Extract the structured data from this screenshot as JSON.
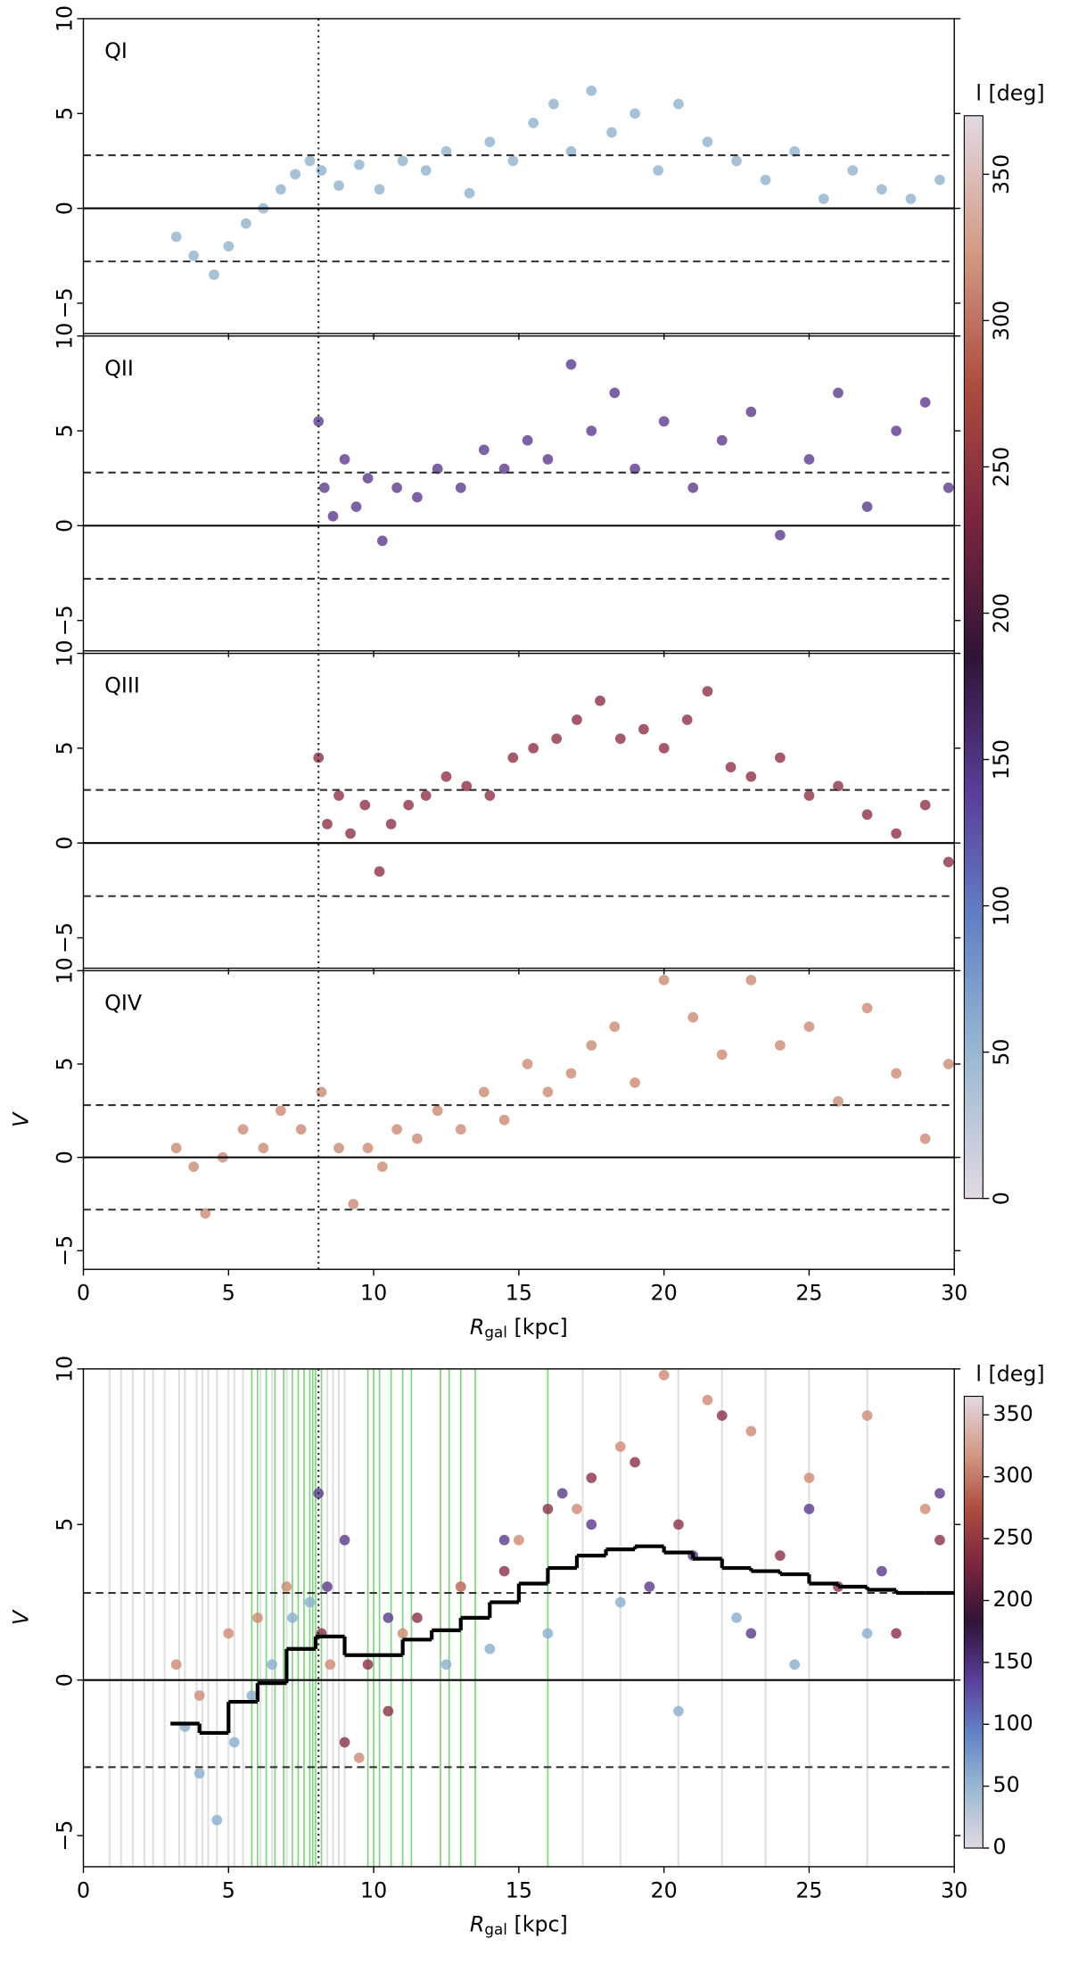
{
  "chart_data": [
    {
      "type": "scatter",
      "panel_label": "QI",
      "xlim": [
        0,
        30
      ],
      "ylim": [
        -6.6,
        10
      ],
      "xticks": [
        0,
        5,
        10,
        15,
        20,
        25,
        30
      ],
      "show_xticklabels": false,
      "yticks": [
        10,
        5,
        0,
        {
          "value": -5,
          "label": "−5"
        }
      ],
      "hline": 0,
      "dashed_hlines": [
        2.8,
        -2.8
      ],
      "vline": 8.1,
      "series": [
        {
          "color": "#8fb3cf",
          "x": [
            3.2,
            3.8,
            4.5,
            5.0,
            5.6,
            6.2,
            6.8,
            7.3,
            7.8,
            8.2,
            8.8,
            9.5,
            10.2,
            11.0,
            11.8,
            12.5,
            13.3,
            14.0,
            14.8,
            15.5,
            16.2,
            16.8,
            17.5,
            18.2,
            19.0,
            19.8,
            20.5,
            21.5,
            22.5,
            23.5,
            24.5,
            25.5,
            26.5,
            27.5,
            28.5,
            29.5
          ],
          "y": [
            -1.5,
            -2.5,
            -3.5,
            -2.0,
            -0.8,
            0.0,
            1.0,
            1.8,
            2.5,
            2.0,
            1.2,
            2.3,
            1.0,
            2.5,
            2.0,
            3.0,
            0.8,
            3.5,
            2.5,
            4.5,
            5.5,
            3.0,
            6.2,
            4.0,
            5.0,
            2.0,
            5.5,
            3.5,
            2.5,
            1.5,
            3.0,
            0.5,
            2.0,
            1.0,
            0.5,
            1.5
          ]
        }
      ]
    },
    {
      "type": "scatter",
      "panel_label": "QII",
      "xlim": [
        0,
        30
      ],
      "ylim": [
        -6.6,
        10
      ],
      "xticks": [
        0,
        5,
        10,
        15,
        20,
        25,
        30
      ],
      "show_xticklabels": false,
      "yticks": [
        10,
        5,
        0,
        {
          "value": -5,
          "label": "−5"
        }
      ],
      "hline": 0,
      "dashed_hlines": [
        2.8,
        -2.8
      ],
      "vline": 8.1,
      "series": [
        {
          "color": "#5c3a8f",
          "x": [
            8.1,
            8.3,
            8.6,
            9.0,
            9.4,
            9.8,
            10.3,
            10.8,
            11.5,
            12.2,
            13.0,
            13.8,
            14.5,
            15.3,
            16.0,
            16.8,
            17.5,
            18.3,
            19.0,
            20.0,
            21.0,
            22.0,
            23.0,
            24.0,
            25.0,
            26.0,
            27.0,
            28.0,
            29.0,
            29.8
          ],
          "y": [
            5.5,
            2.0,
            0.5,
            3.5,
            1.0,
            2.5,
            -0.8,
            2.0,
            1.5,
            3.0,
            2.0,
            4.0,
            3.0,
            4.5,
            3.5,
            8.5,
            5.0,
            7.0,
            3.0,
            5.5,
            2.0,
            4.5,
            6.0,
            -0.5,
            3.5,
            7.0,
            1.0,
            5.0,
            6.5,
            2.0
          ]
        }
      ]
    },
    {
      "type": "scatter",
      "panel_label": "QIII",
      "xlim": [
        0,
        30
      ],
      "ylim": [
        -6.6,
        10
      ],
      "xticks": [
        0,
        5,
        10,
        15,
        20,
        25,
        30
      ],
      "show_xticklabels": false,
      "yticks": [
        10,
        5,
        0,
        {
          "value": -5,
          "label": "−5"
        }
      ],
      "hline": 0,
      "dashed_hlines": [
        2.8,
        -2.8
      ],
      "vline": 8.1,
      "series": [
        {
          "color": "#8e3045",
          "x": [
            8.1,
            8.4,
            8.8,
            9.2,
            9.7,
            10.2,
            10.6,
            11.2,
            11.8,
            12.5,
            13.2,
            14.0,
            14.8,
            15.5,
            16.3,
            17.0,
            17.8,
            18.5,
            19.3,
            20.0,
            20.8,
            21.5,
            22.3,
            23.0,
            24.0,
            25.0,
            26.0,
            27.0,
            28.0,
            29.0,
            29.8
          ],
          "y": [
            4.5,
            1.0,
            2.5,
            0.5,
            2.0,
            -1.5,
            1.0,
            2.0,
            2.5,
            3.5,
            3.0,
            2.5,
            4.5,
            5.0,
            5.5,
            6.5,
            7.5,
            5.5,
            6.0,
            5.0,
            6.5,
            8.0,
            4.0,
            3.5,
            4.5,
            2.5,
            3.0,
            1.5,
            0.5,
            2.0,
            -1.0
          ]
        }
      ]
    },
    {
      "type": "scatter",
      "panel_label": "QIV",
      "ylabel": "V",
      "xlabel": {
        "main": "R",
        "sub": "gal",
        "unit": " [kpc]"
      },
      "xlim": [
        0,
        30
      ],
      "ylim": [
        -6,
        10
      ],
      "xticks": [
        0,
        5,
        10,
        15,
        20,
        25,
        30
      ],
      "show_xticklabels": true,
      "yticks": [
        10,
        5,
        0,
        {
          "value": -5,
          "label": "−5"
        }
      ],
      "hline": 0,
      "dashed_hlines": [
        2.8,
        -2.8
      ],
      "vline": 8.1,
      "series": [
        {
          "color": "#cc8a72",
          "x": [
            3.2,
            3.8,
            4.2,
            4.8,
            5.5,
            6.2,
            6.8,
            7.5,
            8.2,
            8.8,
            9.3,
            9.8,
            10.3,
            10.8,
            11.5,
            12.2,
            13.0,
            13.8,
            14.5,
            15.3,
            16.0,
            16.8,
            17.5,
            18.3,
            19.0,
            20.0,
            21.0,
            22.0,
            23.0,
            24.0,
            25.0,
            26.0,
            27.0,
            28.0,
            29.0,
            29.8
          ],
          "y": [
            0.5,
            -0.5,
            -3.0,
            0.0,
            1.5,
            0.5,
            2.5,
            1.5,
            3.5,
            0.5,
            -2.5,
            0.5,
            -0.5,
            1.5,
            1.0,
            2.5,
            1.5,
            3.5,
            2.0,
            5.0,
            3.5,
            4.5,
            6.0,
            7.0,
            4.0,
            9.5,
            7.5,
            5.5,
            9.5,
            6.0,
            7.0,
            3.0,
            8.0,
            4.5,
            1.0,
            5.0
          ]
        }
      ]
    },
    {
      "type": "scatter",
      "ylabel": "V",
      "xlabel": {
        "main": "R",
        "sub": "gal",
        "unit": " [kpc]"
      },
      "xlim": [
        0,
        30
      ],
      "ylim": [
        -6,
        10
      ],
      "xticks": [
        0,
        5,
        10,
        15,
        20,
        25,
        30
      ],
      "show_xticklabels": true,
      "yticks": [
        10,
        5,
        0,
        {
          "value": -5,
          "label": "−5"
        }
      ],
      "hline": 0,
      "dashed_hlines": [
        2.8,
        -2.8
      ],
      "vline": 8.1,
      "gray_lines": [
        0.9,
        1.3,
        1.7,
        2.1,
        2.4,
        2.8,
        3.3,
        3.5,
        3.9,
        4.1,
        4.3,
        4.6,
        5.0,
        5.2,
        5.5,
        6.1,
        6.5,
        7.0,
        8.4,
        8.6,
        8.8,
        9.0,
        17.2,
        18.5,
        20.5,
        22.0,
        23.5,
        25.0,
        27.0
      ],
      "green_lines": [
        5.8,
        6.0,
        6.3,
        6.6,
        6.9,
        7.2,
        7.4,
        7.6,
        7.8,
        7.9,
        8.0,
        8.2,
        9.8,
        10.0,
        10.2,
        10.6,
        11.0,
        11.3,
        12.3,
        12.6,
        13.0,
        13.5,
        16.0
      ],
      "series": [
        {
          "color": "#8aaed0",
          "x": [
            3.5,
            4.0,
            4.6,
            5.2,
            5.8,
            6.5,
            7.2,
            7.8,
            12.5,
            14.0,
            16.0,
            18.5,
            20.5,
            22.5,
            24.5,
            27.0
          ],
          "y": [
            -1.5,
            -3.0,
            -4.5,
            -2.0,
            -0.5,
            0.5,
            2.0,
            2.5,
            0.5,
            1.0,
            1.5,
            2.5,
            -1.0,
            2.0,
            0.5,
            1.5
          ]
        },
        {
          "color": "#5a3a8c",
          "x": [
            8.1,
            8.4,
            9.0,
            10.5,
            14.5,
            16.5,
            17.5,
            19.5,
            21.0,
            23.0,
            25.0,
            27.5,
            29.5
          ],
          "y": [
            6.0,
            3.0,
            4.5,
            2.0,
            4.5,
            6.0,
            5.0,
            3.0,
            4.0,
            1.5,
            5.5,
            3.5,
            6.0
          ]
        },
        {
          "color": "#8c2f47",
          "x": [
            8.2,
            9.0,
            9.8,
            10.5,
            11.5,
            13.0,
            14.5,
            16.0,
            17.5,
            19.0,
            20.5,
            22.0,
            24.0,
            26.0,
            28.0,
            29.5
          ],
          "y": [
            1.5,
            -2.0,
            0.5,
            -1.0,
            2.0,
            3.0,
            3.5,
            5.5,
            6.5,
            7.0,
            5.0,
            8.5,
            4.0,
            3.0,
            1.5,
            4.5
          ]
        },
        {
          "color": "#d08a70",
          "x": [
            3.2,
            4.0,
            5.0,
            6.0,
            7.0,
            8.5,
            9.5,
            11.0,
            13.0,
            15.0,
            17.0,
            18.5,
            20.0,
            21.5,
            23.0,
            25.0,
            27.0,
            29.0
          ],
          "y": [
            0.5,
            -0.5,
            1.5,
            2.0,
            3.0,
            0.5,
            -2.5,
            1.5,
            3.0,
            4.5,
            5.5,
            7.5,
            9.8,
            9.0,
            8.0,
            6.5,
            8.5,
            5.5
          ]
        }
      ],
      "step": {
        "color": "#000000",
        "bins": [
          3,
          4,
          5,
          6,
          7,
          8,
          9,
          10,
          11,
          12,
          13,
          14,
          15,
          16,
          17,
          18,
          19,
          20,
          21,
          22,
          23,
          24,
          25,
          26,
          27,
          28,
          29,
          30
        ],
        "values": [
          -1.4,
          -1.7,
          -0.7,
          -0.1,
          1.0,
          1.4,
          0.8,
          0.8,
          1.3,
          1.6,
          2.0,
          2.5,
          3.1,
          3.6,
          4.0,
          4.2,
          4.3,
          4.1,
          3.9,
          3.6,
          3.5,
          3.4,
          3.1,
          3.0,
          2.9,
          2.8,
          2.8
        ]
      }
    }
  ],
  "colorbars": [
    {
      "label": "l [deg]",
      "clim": [
        0,
        370
      ],
      "ticks": [
        0,
        50,
        100,
        150,
        200,
        250,
        300,
        350
      ],
      "tick_rotation": 90,
      "colormap": [
        "#e2d9e2",
        "#9ebbd2",
        "#6385c7",
        "#5a3e9a",
        "#2f1436",
        "#7a2540",
        "#ad4c3f",
        "#d39a85",
        "#e2d9e2"
      ]
    },
    {
      "label": "l [deg]",
      "clim": [
        0,
        365
      ],
      "ticks": [
        0,
        50,
        100,
        150,
        200,
        250,
        300,
        350
      ],
      "tick_rotation": 0,
      "colormap": [
        "#e2d9e2",
        "#9ebbd2",
        "#6385c7",
        "#5a3e9a",
        "#2f1436",
        "#7a2540",
        "#ad4c3f",
        "#d39a85",
        "#e2d9e2"
      ]
    }
  ]
}
